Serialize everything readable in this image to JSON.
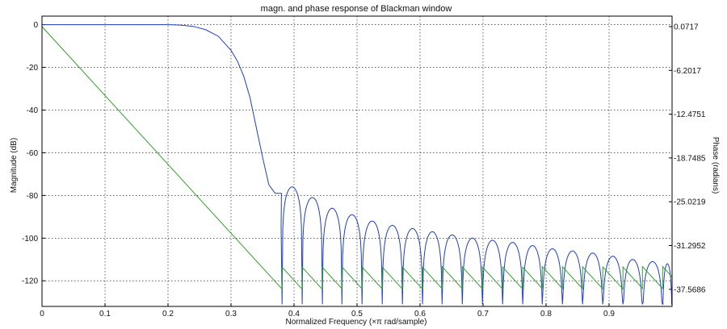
{
  "chart_data": {
    "type": "line",
    "title": "magn. and phase response of Blackman window",
    "xlabel": "Normalized Frequency (×π rad/sample)",
    "ylabel_left": "Magnitude (dB)",
    "ylabel_right": "Phase (radians)",
    "xlim": [
      0,
      1
    ],
    "ylim_left": [
      -132,
      4
    ],
    "ylim_right": [
      -40.02,
      1.57
    ],
    "x_ticks": [
      "0",
      "0.1",
      "0.2",
      "0.3",
      "0.4",
      "0.5",
      "0.6",
      "0.7",
      "0.8",
      "0.9"
    ],
    "y_ticks_left": [
      "0",
      "-20",
      "-40",
      "-60",
      "-80",
      "-100",
      "-120"
    ],
    "y_ticks_right": [
      "0.0717",
      "-6.2017",
      "-12.4751",
      "-18.7485",
      "-25.0219",
      "-31.2952",
      "-37.5686"
    ],
    "grid": true,
    "series": [
      {
        "role": "magnitude",
        "color": "#1f3fbf",
        "mainlobe": [
          [
            0,
            0
          ],
          [
            0.2,
            0
          ],
          [
            0.22,
            -0.2
          ],
          [
            0.24,
            -0.8
          ],
          [
            0.26,
            -2.4
          ],
          [
            0.28,
            -5.5
          ],
          [
            0.3,
            -12
          ],
          [
            0.31,
            -17
          ],
          [
            0.32,
            -24
          ],
          [
            0.33,
            -34
          ],
          [
            0.34,
            -48
          ],
          [
            0.35,
            -62
          ],
          [
            0.36,
            -75
          ],
          [
            0.37,
            -79
          ],
          [
            0.38,
            -79
          ]
        ],
        "sidelobe_nulls": [
          0.381,
          0.413,
          0.445,
          0.476,
          0.508,
          0.54,
          0.572,
          0.604,
          0.635,
          0.667,
          0.699,
          0.731,
          0.763,
          0.794,
          0.826,
          0.858,
          0.89,
          0.922,
          0.953,
          0.985
        ],
        "sidelobe_peaks_db": [
          -76,
          -81,
          -86,
          -89,
          -92,
          -94,
          -95.5,
          -97,
          -98.5,
          -100,
          -101,
          -102,
          -103.5,
          -105,
          -106,
          -107,
          -108.5,
          -110,
          -111,
          -112
        ],
        "null_depth_db": -131
      },
      {
        "role": "phase",
        "color": "#33a02c",
        "start": [
          0,
          0.0717
        ],
        "slope_per_unit_x": -98.7,
        "wrap_floor": -37.5686,
        "wrap_step": 3.1416
      }
    ]
  }
}
